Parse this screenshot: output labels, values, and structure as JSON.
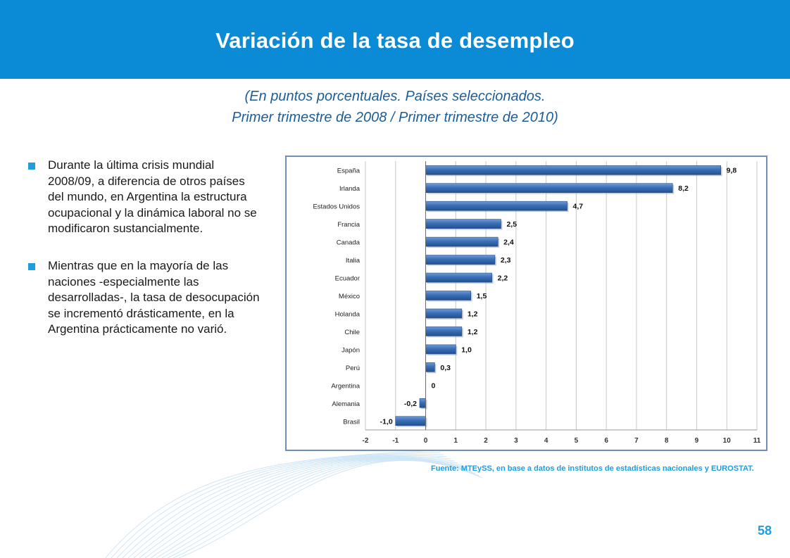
{
  "header": {
    "title": "Variación de la tasa de desempleo"
  },
  "subtitle": {
    "line1": "(En puntos porcentuales. Países seleccionados.",
    "line2": "Primer trimestre de 2008 / Primer trimestre de 2010)"
  },
  "bullets": [
    "Durante la última crisis mundial 2008/09, a diferencia de otros países del mundo, en Argentina la estructura ocupacional y la dinámica laboral no se modificaron sustancialmente.",
    "Mientras que en la mayoría de las naciones -especialmente las desarrolladas-, la tasa de desocupación se incrementó drásticamente, en la Argentina prácticamente no varió."
  ],
  "source": "Fuente: MTEySS, en base a datos de institutos de estadísticas nacionales y EUROSTAT.",
  "page_number": "58",
  "colors": {
    "header": "#0b8ad6",
    "bar": "#3a6fb5",
    "accent": "#1e9de0"
  },
  "chart_data": {
    "type": "bar",
    "orientation": "horizontal",
    "categories": [
      "España",
      "Irlanda",
      "Estados Unidos",
      "Francia",
      "Canada",
      "Italia",
      "Ecuador",
      "México",
      "Holanda",
      "Chile",
      "Japón",
      "Perú",
      "Argentina",
      "Alemania",
      "Brasil"
    ],
    "values": [
      9.8,
      8.2,
      4.7,
      2.5,
      2.4,
      2.3,
      2.2,
      1.5,
      1.2,
      1.2,
      1.0,
      0.3,
      0,
      -0.2,
      -1.0
    ],
    "value_labels": [
      "9,8",
      "8,2",
      "4,7",
      "2,5",
      "2,4",
      "2,3",
      "2,2",
      "1,5",
      "1,2",
      "1,2",
      "1,0",
      "0,3",
      "0",
      "-0,2",
      "-1,0"
    ],
    "xlim": [
      -2,
      11
    ],
    "x_ticks": [
      -2,
      -1,
      0,
      1,
      2,
      3,
      4,
      5,
      6,
      7,
      8,
      9,
      10,
      11
    ],
    "grid": true
  }
}
